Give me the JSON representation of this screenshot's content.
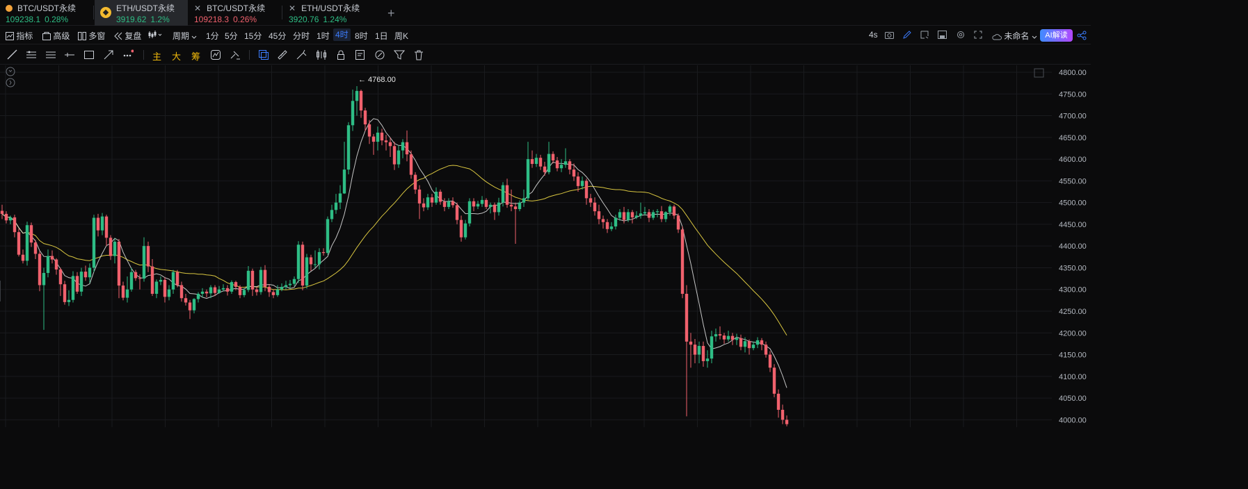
{
  "tabs": [
    {
      "symbol": "BTC/USDT永续",
      "price": "109238.1",
      "change": "0.28%",
      "dir": "up",
      "icon": "orange-dot-icon"
    },
    {
      "symbol": "ETH/USDT永续",
      "price": "3919.62",
      "change": "1.2%",
      "dir": "up",
      "icon": "eth-coin-icon",
      "active": true
    },
    {
      "symbol": "BTC/USDT永续",
      "price": "109218.3",
      "change": "0.26%",
      "dir": "down",
      "icon": "close-icon"
    },
    {
      "symbol": "ETH/USDT永续",
      "price": "3920.76",
      "change": "1.24%",
      "dir": "up",
      "icon": "close-icon"
    }
  ],
  "toolbar": {
    "indicators": "指标",
    "advanced": "高级",
    "multi_window": "多窗",
    "replay": "复盘",
    "period": "周期",
    "intervals": [
      "1分",
      "5分",
      "15分",
      "45分",
      "分时",
      "1时",
      "4时",
      "8时",
      "1日",
      "周K"
    ],
    "active_interval": "4时",
    "refresh": "4s",
    "layout_name": "未命名",
    "ai_label": "AI解读"
  },
  "drawbar": {
    "main": "主",
    "big": "大",
    "chips": "筹"
  },
  "chart_data": {
    "type": "candlestick",
    "high_annotation": "← 4768.00",
    "price_ticks": [
      "4800.00",
      "4750.00",
      "4700.00",
      "4650.00",
      "4600.00",
      "4550.00",
      "4500.00",
      "4450.00",
      "4400.00",
      "4350.00",
      "4300.00",
      "4250.00",
      "4200.00",
      "4150.00",
      "4100.00",
      "4050.00",
      "4000.00"
    ],
    "ylim": [
      3983,
      4816
    ],
    "colors": {
      "up": "#2ebd85",
      "down": "#f0616d",
      "ma_short": "#e6e6e6",
      "ma_long": "#d9c640",
      "grid": "#1a1b1e"
    },
    "candles": [
      [
        4481,
        4474,
        4495,
        4462
      ],
      [
        4474,
        4459,
        4480,
        4452
      ],
      [
        4459,
        4466,
        4470,
        4450
      ],
      [
        4466,
        4432,
        4472,
        4420
      ],
      [
        4432,
        4380,
        4440,
        4376
      ],
      [
        4380,
        4366,
        4392,
        4360
      ],
      [
        4366,
        4448,
        4456,
        4355
      ],
      [
        4448,
        4408,
        4454,
        4398
      ],
      [
        4408,
        4382,
        4414,
        4370
      ],
      [
        4382,
        4310,
        4388,
        4296
      ],
      [
        4310,
        4338,
        4350,
        4207
      ],
      [
        4338,
        4377,
        4392,
        4328
      ],
      [
        4377,
        4369,
        4390,
        4360
      ],
      [
        4369,
        4346,
        4372,
        4334
      ],
      [
        4346,
        4312,
        4350,
        4285
      ],
      [
        4312,
        4271,
        4320,
        4265
      ],
      [
        4271,
        4276,
        4298,
        4262
      ],
      [
        4276,
        4331,
        4342,
        4270
      ],
      [
        4331,
        4295,
        4340,
        4290
      ],
      [
        4295,
        4341,
        4350,
        4285
      ],
      [
        4341,
        4328,
        4355,
        4320
      ],
      [
        4328,
        4350,
        4360,
        4315
      ],
      [
        4350,
        4465,
        4472,
        4340
      ],
      [
        4465,
        4436,
        4474,
        4422
      ],
      [
        4436,
        4468,
        4476,
        4425
      ],
      [
        4468,
        4419,
        4472,
        4400
      ],
      [
        4419,
        4377,
        4425,
        4368
      ],
      [
        4377,
        4410,
        4418,
        4360
      ],
      [
        4410,
        4309,
        4416,
        4280
      ],
      [
        4309,
        4281,
        4318,
        4275
      ],
      [
        4281,
        4300,
        4330,
        4270
      ],
      [
        4300,
        4340,
        4350,
        4295
      ],
      [
        4340,
        4326,
        4345,
        4320
      ],
      [
        4326,
        4325,
        4335,
        4300
      ],
      [
        4325,
        4400,
        4420,
        4318
      ],
      [
        4400,
        4353,
        4410,
        4340
      ],
      [
        4353,
        4290,
        4370,
        4285
      ],
      [
        4290,
        4318,
        4323,
        4280
      ],
      [
        4318,
        4322,
        4330,
        4310
      ],
      [
        4322,
        4283,
        4328,
        4270
      ],
      [
        4283,
        4300,
        4310,
        4275
      ],
      [
        4300,
        4340,
        4345,
        4290
      ],
      [
        4340,
        4310,
        4345,
        4305
      ],
      [
        4310,
        4280,
        4318,
        4272
      ],
      [
        4280,
        4270,
        4290,
        4263
      ],
      [
        4270,
        4252,
        4276,
        4232
      ],
      [
        4252,
        4278,
        4280,
        4245
      ],
      [
        4278,
        4290,
        4294,
        4270
      ],
      [
        4290,
        4295,
        4303,
        4282
      ],
      [
        4295,
        4291,
        4300,
        4282
      ],
      [
        4291,
        4305,
        4310,
        4280
      ],
      [
        4305,
        4292,
        4310,
        4285
      ],
      [
        4292,
        4300,
        4308,
        4290
      ],
      [
        4300,
        4303,
        4312,
        4296
      ],
      [
        4303,
        4295,
        4310,
        4286
      ],
      [
        4295,
        4317,
        4321,
        4290
      ],
      [
        4317,
        4306,
        4320,
        4298
      ],
      [
        4306,
        4287,
        4310,
        4280
      ],
      [
        4287,
        4299,
        4303,
        4282
      ],
      [
        4299,
        4343,
        4354,
        4294
      ],
      [
        4343,
        4300,
        4348,
        4285
      ],
      [
        4300,
        4294,
        4306,
        4286
      ],
      [
        4294,
        4345,
        4352,
        4288
      ],
      [
        4345,
        4306,
        4356,
        4296
      ],
      [
        4306,
        4294,
        4312,
        4283
      ],
      [
        4294,
        4287,
        4300,
        4280
      ],
      [
        4287,
        4300,
        4310,
        4283
      ],
      [
        4300,
        4306,
        4314,
        4296
      ],
      [
        4306,
        4310,
        4320,
        4300
      ],
      [
        4310,
        4313,
        4322,
        4302
      ],
      [
        4313,
        4324,
        4330,
        4308
      ],
      [
        4324,
        4403,
        4411,
        4315
      ],
      [
        4403,
        4309,
        4410,
        4298
      ],
      [
        4309,
        4374,
        4382,
        4302
      ],
      [
        4374,
        4358,
        4380,
        4343
      ],
      [
        4358,
        4358,
        4390,
        4350
      ],
      [
        4358,
        4386,
        4395,
        4346
      ],
      [
        4386,
        4384,
        4395,
        4378
      ],
      [
        4384,
        4462,
        4468,
        4380
      ],
      [
        4462,
        4483,
        4495,
        4455
      ],
      [
        4483,
        4500,
        4520,
        4474
      ],
      [
        4500,
        4521,
        4540,
        4485
      ],
      [
        4521,
        4576,
        4640,
        4520
      ],
      [
        4576,
        4678,
        4685,
        4565
      ],
      [
        4678,
        4734,
        4760,
        4665
      ],
      [
        4734,
        4757,
        4768,
        4700
      ],
      [
        4757,
        4712,
        4760,
        4695
      ],
      [
        4712,
        4680,
        4718,
        4665
      ],
      [
        4680,
        4652,
        4690,
        4635
      ],
      [
        4652,
        4640,
        4658,
        4610
      ],
      [
        4640,
        4661,
        4675,
        4620
      ],
      [
        4661,
        4643,
        4670,
        4632
      ],
      [
        4643,
        4639,
        4656,
        4620
      ],
      [
        4639,
        4630,
        4650,
        4605
      ],
      [
        4630,
        4588,
        4640,
        4575
      ],
      [
        4588,
        4620,
        4632,
        4580
      ],
      [
        4620,
        4639,
        4646,
        4602
      ],
      [
        4639,
        4611,
        4666,
        4595
      ],
      [
        4611,
        4564,
        4620,
        4555
      ],
      [
        4564,
        4530,
        4570,
        4520
      ],
      [
        4530,
        4498,
        4540,
        4462
      ],
      [
        4498,
        4489,
        4510,
        4480
      ],
      [
        4489,
        4512,
        4520,
        4483
      ],
      [
        4512,
        4500,
        4520,
        4490
      ],
      [
        4500,
        4525,
        4535,
        4495
      ],
      [
        4525,
        4502,
        4530,
        4495
      ],
      [
        4502,
        4490,
        4510,
        4480
      ],
      [
        4490,
        4503,
        4510,
        4485
      ],
      [
        4503,
        4494,
        4512,
        4488
      ],
      [
        4494,
        4460,
        4500,
        4450
      ],
      [
        4460,
        4420,
        4470,
        4410
      ],
      [
        4420,
        4452,
        4460,
        4415
      ],
      [
        4452,
        4503,
        4510,
        4445
      ],
      [
        4503,
        4491,
        4510,
        4480
      ],
      [
        4491,
        4497,
        4504,
        4485
      ],
      [
        4497,
        4506,
        4515,
        4490
      ],
      [
        4506,
        4490,
        4510,
        4485
      ],
      [
        4490,
        4495,
        4500,
        4475
      ],
      [
        4495,
        4478,
        4500,
        4460
      ],
      [
        4478,
        4500,
        4511,
        4470
      ],
      [
        4500,
        4540,
        4547,
        4491
      ],
      [
        4540,
        4495,
        4555,
        4488
      ],
      [
        4495,
        4491,
        4530,
        4480
      ],
      [
        4491,
        4485,
        4500,
        4405
      ],
      [
        4485,
        4500,
        4505,
        4480
      ],
      [
        4500,
        4510,
        4530,
        4490
      ],
      [
        4510,
        4600,
        4640,
        4505
      ],
      [
        4600,
        4589,
        4620,
        4580
      ],
      [
        4589,
        4603,
        4612,
        4582
      ],
      [
        4603,
        4583,
        4610,
        4575
      ],
      [
        4583,
        4570,
        4594,
        4562
      ],
      [
        4570,
        4612,
        4640,
        4565
      ],
      [
        4612,
        4597,
        4618,
        4590
      ],
      [
        4597,
        4579,
        4605,
        4572
      ],
      [
        4579,
        4587,
        4600,
        4570
      ],
      [
        4587,
        4595,
        4625,
        4580
      ],
      [
        4595,
        4576,
        4600,
        4565
      ],
      [
        4576,
        4560,
        4590,
        4550
      ],
      [
        4560,
        4538,
        4570,
        4525
      ],
      [
        4538,
        4550,
        4560,
        4530
      ],
      [
        4550,
        4510,
        4555,
        4495
      ],
      [
        4510,
        4500,
        4520,
        4490
      ],
      [
        4500,
        4480,
        4512,
        4470
      ],
      [
        4480,
        4462,
        4495,
        4450
      ],
      [
        4462,
        4455,
        4470,
        4440
      ],
      [
        4455,
        4439,
        4462,
        4430
      ],
      [
        4439,
        4445,
        4455,
        4434
      ],
      [
        4445,
        4465,
        4472,
        4438
      ],
      [
        4465,
        4478,
        4485,
        4458
      ],
      [
        4478,
        4460,
        4490,
        4452
      ],
      [
        4460,
        4478,
        4485,
        4455
      ],
      [
        4478,
        4466,
        4483,
        4452
      ],
      [
        4466,
        4470,
        4480,
        4462
      ],
      [
        4470,
        4475,
        4500,
        4463
      ],
      [
        4475,
        4478,
        4490,
        4470
      ],
      [
        4478,
        4465,
        4485,
        4455
      ],
      [
        4465,
        4478,
        4483,
        4460
      ],
      [
        4478,
        4480,
        4485,
        4466
      ],
      [
        4480,
        4462,
        4492,
        4455
      ],
      [
        4462,
        4478,
        4480,
        4455
      ],
      [
        4478,
        4491,
        4495,
        4470
      ],
      [
        4491,
        4470,
        4495,
        4462
      ],
      [
        4470,
        4438,
        4475,
        4430
      ],
      [
        4438,
        4290,
        4445,
        4280
      ],
      [
        4290,
        4180,
        4310,
        4008
      ],
      [
        4180,
        4173,
        4200,
        4120
      ],
      [
        4173,
        4150,
        4186,
        4130
      ],
      [
        4150,
        4170,
        4180,
        4130
      ],
      [
        4170,
        4135,
        4180,
        4122
      ],
      [
        4135,
        4141,
        4160,
        4120
      ],
      [
        4141,
        4192,
        4205,
        4130
      ],
      [
        4192,
        4197,
        4210,
        4180
      ],
      [
        4197,
        4194,
        4215,
        4185
      ],
      [
        4194,
        4185,
        4200,
        4175
      ],
      [
        4185,
        4193,
        4205,
        4180
      ],
      [
        4193,
        4184,
        4200,
        4172
      ],
      [
        4184,
        4188,
        4198,
        4172
      ],
      [
        4188,
        4168,
        4196,
        4160
      ],
      [
        4168,
        4181,
        4190,
        4155
      ],
      [
        4181,
        4165,
        4185,
        4150
      ],
      [
        4165,
        4173,
        4180,
        4160
      ],
      [
        4173,
        4183,
        4190,
        4165
      ],
      [
        4183,
        4173,
        4188,
        4160
      ],
      [
        4173,
        4150,
        4180,
        4143
      ],
      [
        4150,
        4120,
        4158,
        4110
      ],
      [
        4120,
        4060,
        4128,
        4052
      ],
      [
        4060,
        4023,
        4070,
        4005
      ],
      [
        4023,
        4000,
        4035,
        3990
      ],
      [
        4000,
        3990,
        4010,
        3985
      ]
    ]
  }
}
